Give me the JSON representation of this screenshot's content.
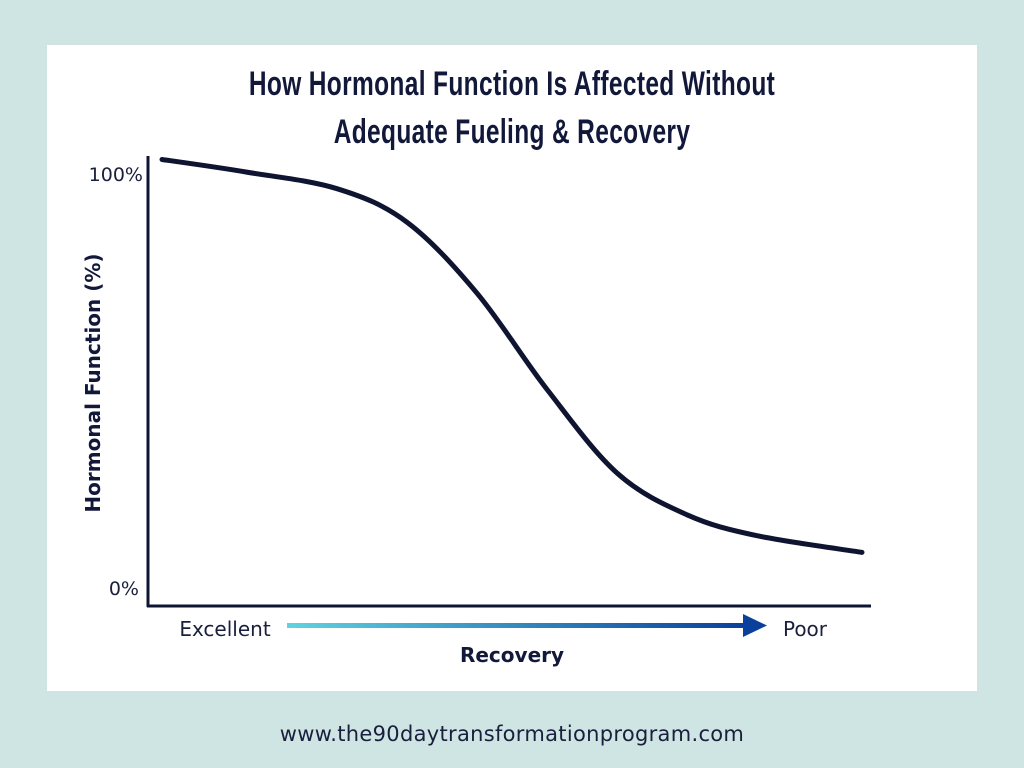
{
  "colors": {
    "background": "#cfe5e3",
    "card": "#ffffff",
    "curve": "#0f1430",
    "axis": "#0f1430",
    "arrow_start": "#5fd3e0",
    "arrow_end": "#0b3f9c"
  },
  "title_line1": "How Hormonal Function Is Affected Without",
  "title_line2": "Adequate Fueling & Recovery",
  "footer_url": "www.the90daytransformationprogram.com",
  "chart_data": {
    "type": "line",
    "title": "How Hormonal Function Is Affected Without Adequate Fueling & Recovery",
    "ylabel": "Hormonal Function (%)",
    "xlabel": "Recovery",
    "ytick_labels": [
      "100%",
      "0%"
    ],
    "ylim": [
      0,
      100
    ],
    "xlim": [
      0,
      100
    ],
    "x_start_label": "Excellent",
    "x_end_label": "Poor",
    "x_axis_arrow": true,
    "grid": false,
    "series": [
      {
        "values": [
          {
            "x": 0,
            "y": 103
          },
          {
            "x": 12,
            "y": 100
          },
          {
            "x": 25,
            "y": 96
          },
          {
            "x": 35,
            "y": 88
          },
          {
            "x": 45,
            "y": 71
          },
          {
            "x": 55,
            "y": 48
          },
          {
            "x": 65,
            "y": 28
          },
          {
            "x": 75,
            "y": 18
          },
          {
            "x": 85,
            "y": 13
          },
          {
            "x": 100,
            "y": 9
          }
        ]
      }
    ]
  }
}
